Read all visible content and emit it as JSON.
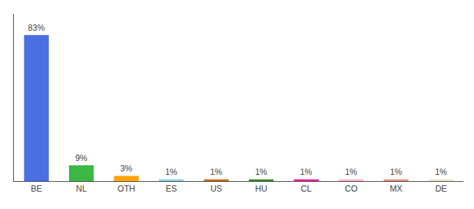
{
  "chart_data": {
    "type": "bar",
    "categories": [
      "BE",
      "NL",
      "OTH",
      "ES",
      "US",
      "HU",
      "CL",
      "CO",
      "MX",
      "DE"
    ],
    "values": [
      83,
      9,
      3,
      1,
      1,
      1,
      1,
      1,
      1,
      1
    ],
    "value_labels": [
      "83%",
      "9%",
      "3%",
      "1%",
      "1%",
      "1%",
      "1%",
      "1%",
      "1%",
      "1%"
    ],
    "colors": [
      "#4A6FE3",
      "#3CB843",
      "#FFA500",
      "#87CEEB",
      "#CC6600",
      "#2E8B20",
      "#FF1493",
      "#FFB0C0",
      "#E8907A",
      "#F0E8C8"
    ],
    "data_labels": true,
    "ylim": [
      0,
      95
    ],
    "tick_labels": "x",
    "grid": false
  }
}
